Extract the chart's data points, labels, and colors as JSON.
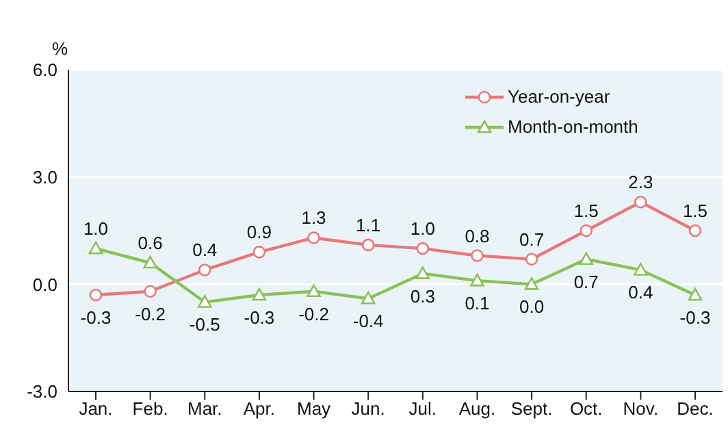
{
  "chart_data": {
    "type": "line",
    "ylabel": "%",
    "categories": [
      "Jan.",
      "Feb.",
      "Mar.",
      "Apr.",
      "May",
      "Jun.",
      "Jul.",
      "Aug.",
      "Sept.",
      "Oct.",
      "Nov.",
      "Dec."
    ],
    "series": [
      {
        "name": "Year-on-year",
        "color": "#e8787a",
        "marker": "circle",
        "values": [
          -0.3,
          -0.2,
          0.4,
          0.9,
          1.3,
          1.1,
          1.0,
          0.8,
          0.7,
          1.5,
          2.3,
          1.5
        ],
        "value_labels": [
          "-0.3",
          "-0.2",
          "0.4",
          "0.9",
          "1.3",
          "1.1",
          "1.0",
          "0.8",
          "0.7",
          "1.5",
          "2.3",
          "1.5"
        ]
      },
      {
        "name": "Month-on-month",
        "color": "#8cc05a",
        "marker": "triangle",
        "values": [
          1.0,
          0.6,
          -0.5,
          -0.3,
          -0.2,
          -0.4,
          0.3,
          0.1,
          0.0,
          0.7,
          0.4,
          -0.3
        ],
        "value_labels": [
          "1.0",
          "0.6",
          "-0.5",
          "-0.3",
          "-0.2",
          "-0.4",
          "0.3",
          "0.1",
          "0.0",
          "0.7",
          "0.4",
          "-0.3"
        ]
      }
    ],
    "ylim": [
      -3,
      6
    ],
    "yticks": [
      {
        "value": -3,
        "label": "-3.0"
      },
      {
        "value": 0,
        "label": "0.0"
      },
      {
        "value": 3,
        "label": "3.0"
      },
      {
        "value": 6,
        "label": "6.0"
      }
    ],
    "grid": "y",
    "legend": "top right"
  }
}
